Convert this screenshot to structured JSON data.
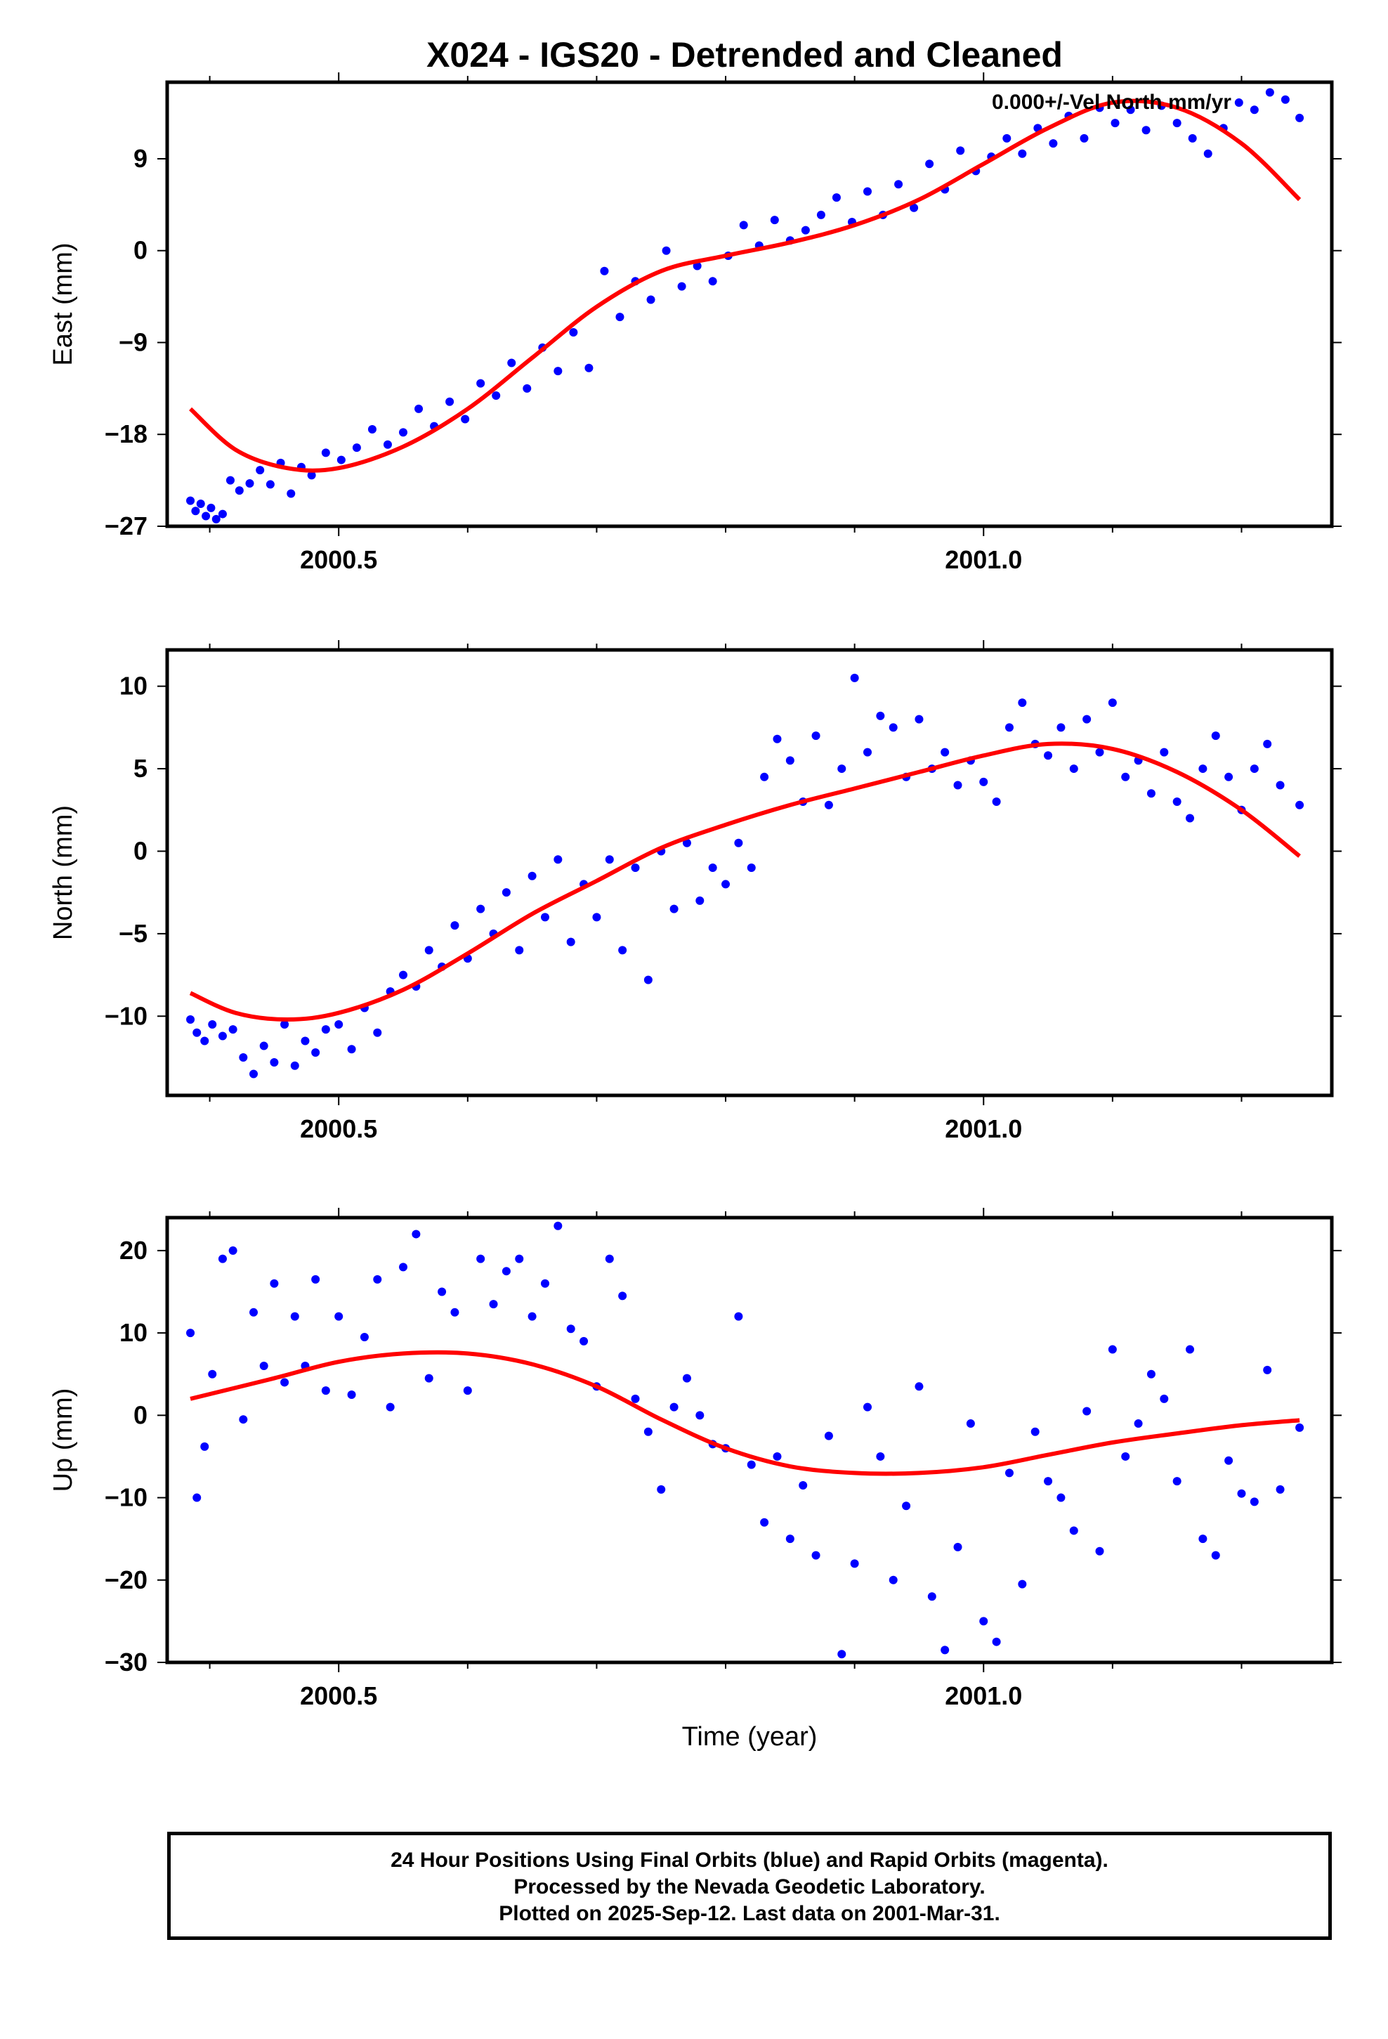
{
  "title": "X024 - IGS20 - Detrended and Cleaned",
  "caption": {
    "line1": "24 Hour Positions Using Final Orbits (blue) and Rapid Orbits (magenta).",
    "line2": "Processed by the Nevada Geodetic Laboratory.",
    "line3": "Plotted on 2025-Sep-12. Last data on 2001-Mar-31."
  },
  "colors": {
    "data_points": "#0000ff",
    "fit_curve": "#ff0000",
    "frame": "#000000"
  },
  "chart_data": [
    {
      "type": "scatter",
      "ylabel": "East (mm)",
      "xlabel": "",
      "xlim": [
        2000.367,
        2001.27
      ],
      "ylim": [
        -27,
        16.5
      ],
      "yticks": [
        -27,
        -18,
        -9,
        0,
        9
      ],
      "xticks": [
        2000.5,
        2001.0
      ],
      "annotation": "0.000+/-Vel North mm/yr",
      "fit": {
        "name": "",
        "x": [
          2000.385,
          2000.42,
          2000.46,
          2000.5,
          2000.55,
          2000.6,
          2000.65,
          2000.7,
          2000.75,
          2000.8,
          2000.85,
          2000.9,
          2000.95,
          2001.0,
          2001.05,
          2001.1,
          2001.15,
          2001.2,
          2001.245
        ],
        "y": [
          -15.5,
          -19.5,
          -21.3,
          -21.3,
          -19.2,
          -15.5,
          -10.5,
          -5.5,
          -2.0,
          -0.5,
          0.8,
          2.5,
          5.0,
          8.5,
          12.0,
          14.5,
          14.0,
          10.5,
          5.0
        ]
      },
      "series": [
        {
          "name": "",
          "x": [
            2000.385,
            2000.389,
            2000.393,
            2000.397,
            2000.401,
            2000.405,
            2000.41,
            2000.416,
            2000.423,
            2000.431,
            2000.439,
            2000.447,
            2000.455,
            2000.463,
            2000.471,
            2000.479,
            2000.49,
            2000.502,
            2000.514,
            2000.526,
            2000.538,
            2000.55,
            2000.562,
            2000.574,
            2000.586,
            2000.598,
            2000.61,
            2000.622,
            2000.634,
            2000.646,
            2000.658,
            2000.67,
            2000.682,
            2000.694,
            2000.706,
            2000.718,
            2000.73,
            2000.742,
            2000.754,
            2000.766,
            2000.778,
            2000.79,
            2000.802,
            2000.814,
            2000.826,
            2000.838,
            2000.85,
            2000.862,
            2000.874,
            2000.886,
            2000.898,
            2000.91,
            2000.922,
            2000.934,
            2000.946,
            2000.958,
            2000.97,
            2000.982,
            2000.994,
            2001.006,
            2001.018,
            2001.03,
            2001.042,
            2001.054,
            2001.066,
            2001.078,
            2001.09,
            2001.102,
            2001.114,
            2001.126,
            2001.138,
            2001.15,
            2001.162,
            2001.174,
            2001.186,
            2001.198,
            2001.21,
            2001.222,
            2001.234,
            2001.245
          ],
          "y": [
            -24.5,
            -25.5,
            -24.8,
            -26.0,
            -25.2,
            -26.3,
            -25.8,
            -22.5,
            -23.5,
            -22.8,
            -21.5,
            -22.9,
            -20.8,
            -23.8,
            -21.2,
            -22.0,
            -19.8,
            -20.5,
            -19.3,
            -17.5,
            -19.0,
            -17.8,
            -15.5,
            -17.2,
            -14.8,
            -16.5,
            -13.0,
            -14.2,
            -11.0,
            -13.5,
            -9.5,
            -11.8,
            -8.0,
            -11.5,
            -2.0,
            -6.5,
            -3.0,
            -4.8,
            0.0,
            -3.5,
            -1.5,
            -3.0,
            -0.5,
            2.5,
            0.5,
            3.0,
            1.0,
            2.0,
            3.5,
            5.2,
            2.8,
            5.8,
            3.5,
            6.5,
            4.2,
            8.5,
            6.0,
            9.8,
            7.8,
            9.2,
            11.0,
            9.5,
            12.0,
            10.5,
            13.2,
            11.0,
            14.0,
            12.5,
            13.8,
            11.8,
            14.2,
            12.5,
            11.0,
            9.5,
            12.0,
            14.5,
            13.8,
            15.5,
            14.8,
            13.0
          ]
        }
      ]
    },
    {
      "type": "scatter",
      "ylabel": "North (mm)",
      "xlabel": "",
      "xlim": [
        2000.367,
        2001.27
      ],
      "ylim": [
        -14.8,
        12.2
      ],
      "yticks": [
        -10,
        -5,
        0,
        5,
        10
      ],
      "xticks": [
        2000.5,
        2001.0
      ],
      "fit": {
        "name": "",
        "x": [
          2000.385,
          2000.42,
          2000.46,
          2000.5,
          2000.55,
          2000.6,
          2000.65,
          2000.7,
          2000.75,
          2000.8,
          2000.85,
          2000.9,
          2000.95,
          2001.0,
          2001.05,
          2001.1,
          2001.15,
          2001.2,
          2001.245
        ],
        "y": [
          -8.6,
          -9.8,
          -10.2,
          -9.8,
          -8.4,
          -6.2,
          -3.8,
          -1.8,
          0.2,
          1.6,
          2.8,
          3.8,
          4.8,
          5.8,
          6.5,
          6.2,
          4.8,
          2.5,
          -0.3
        ]
      },
      "series": [
        {
          "name": "",
          "x": [
            2000.385,
            2000.39,
            2000.396,
            2000.402,
            2000.41,
            2000.418,
            2000.426,
            2000.434,
            2000.442,
            2000.45,
            2000.458,
            2000.466,
            2000.474,
            2000.482,
            2000.49,
            2000.5,
            2000.51,
            2000.52,
            2000.53,
            2000.54,
            2000.55,
            2000.56,
            2000.57,
            2000.58,
            2000.59,
            2000.6,
            2000.61,
            2000.62,
            2000.63,
            2000.64,
            2000.65,
            2000.66,
            2000.67,
            2000.68,
            2000.69,
            2000.7,
            2000.71,
            2000.72,
            2000.73,
            2000.74,
            2000.75,
            2000.76,
            2000.77,
            2000.78,
            2000.79,
            2000.8,
            2000.81,
            2000.82,
            2000.83,
            2000.84,
            2000.85,
            2000.86,
            2000.87,
            2000.88,
            2000.89,
            2000.9,
            2000.91,
            2000.92,
            2000.93,
            2000.94,
            2000.95,
            2000.96,
            2000.97,
            2000.98,
            2000.99,
            2001.0,
            2001.01,
            2001.02,
            2001.03,
            2001.04,
            2001.05,
            2001.06,
            2001.07,
            2001.08,
            2001.09,
            2001.1,
            2001.11,
            2001.12,
            2001.13,
            2001.14,
            2001.15,
            2001.16,
            2001.17,
            2001.18,
            2001.19,
            2001.2,
            2001.21,
            2001.22,
            2001.23,
            2001.245
          ],
          "y": [
            -10.2,
            -11.0,
            -11.5,
            -10.5,
            -11.2,
            -10.8,
            -12.5,
            -13.5,
            -11.8,
            -12.8,
            -10.5,
            -13.0,
            -11.5,
            -12.2,
            -10.8,
            -10.5,
            -12.0,
            -9.5,
            -11.0,
            -8.5,
            -7.5,
            -8.2,
            -6.0,
            -7.0,
            -4.5,
            -6.5,
            -3.5,
            -5.0,
            -2.5,
            -6.0,
            -1.5,
            -4.0,
            -0.5,
            -5.5,
            -2.0,
            -4.0,
            -0.5,
            -6.0,
            -1.0,
            -7.8,
            0.0,
            -3.5,
            0.5,
            -3.0,
            -1.0,
            -2.0,
            0.5,
            -1.0,
            4.5,
            6.8,
            5.5,
            3.0,
            7.0,
            2.8,
            5.0,
            10.5,
            6.0,
            8.2,
            7.5,
            4.5,
            8.0,
            5.0,
            6.0,
            4.0,
            5.5,
            4.2,
            3.0,
            7.5,
            9.0,
            6.5,
            5.8,
            7.5,
            5.0,
            8.0,
            6.0,
            9.0,
            4.5,
            5.5,
            3.5,
            6.0,
            3.0,
            2.0,
            5.0,
            7.0,
            4.5,
            2.5,
            5.0,
            6.5,
            4.0,
            2.8
          ]
        }
      ]
    },
    {
      "type": "scatter",
      "ylabel": "Up (mm)",
      "xlabel": "Time (year)",
      "xlim": [
        2000.367,
        2001.27
      ],
      "ylim": [
        -30,
        24
      ],
      "yticks": [
        -30,
        -20,
        -10,
        0,
        10,
        20
      ],
      "xticks": [
        2000.5,
        2001.0
      ],
      "fit": {
        "name": "",
        "x": [
          2000.385,
          2000.45,
          2000.5,
          2000.55,
          2000.6,
          2000.65,
          2000.7,
          2000.75,
          2000.8,
          2000.85,
          2000.9,
          2000.95,
          2001.0,
          2001.05,
          2001.1,
          2001.15,
          2001.2,
          2001.245
        ],
        "y": [
          2.0,
          4.5,
          6.5,
          7.5,
          7.5,
          6.2,
          3.5,
          -0.5,
          -4.0,
          -6.2,
          -7.0,
          -7.0,
          -6.3,
          -4.8,
          -3.3,
          -2.2,
          -1.2,
          -0.6
        ]
      },
      "series": [
        {
          "name": "",
          "x": [
            2000.385,
            2000.39,
            2000.396,
            2000.402,
            2000.41,
            2000.418,
            2000.426,
            2000.434,
            2000.442,
            2000.45,
            2000.458,
            2000.466,
            2000.474,
            2000.482,
            2000.49,
            2000.5,
            2000.51,
            2000.52,
            2000.53,
            2000.54,
            2000.55,
            2000.56,
            2000.57,
            2000.58,
            2000.59,
            2000.6,
            2000.61,
            2000.62,
            2000.63,
            2000.64,
            2000.65,
            2000.66,
            2000.67,
            2000.68,
            2000.69,
            2000.7,
            2000.71,
            2000.72,
            2000.73,
            2000.74,
            2000.75,
            2000.76,
            2000.77,
            2000.78,
            2000.79,
            2000.8,
            2000.81,
            2000.82,
            2000.83,
            2000.84,
            2000.85,
            2000.86,
            2000.87,
            2000.88,
            2000.89,
            2000.9,
            2000.91,
            2000.92,
            2000.93,
            2000.94,
            2000.95,
            2000.96,
            2000.97,
            2000.98,
            2000.99,
            2001.0,
            2001.01,
            2001.02,
            2001.03,
            2001.04,
            2001.05,
            2001.06,
            2001.07,
            2001.08,
            2001.09,
            2001.1,
            2001.11,
            2001.12,
            2001.13,
            2001.14,
            2001.15,
            2001.16,
            2001.17,
            2001.18,
            2001.19,
            2001.2,
            2001.21,
            2001.22,
            2001.23,
            2001.245
          ],
          "y": [
            10.0,
            -10.0,
            -3.8,
            5.0,
            19.0,
            20.0,
            -0.5,
            12.5,
            6.0,
            16.0,
            4.0,
            12.0,
            6.0,
            16.5,
            3.0,
            12.0,
            2.5,
            9.5,
            16.5,
            1.0,
            18.0,
            22.0,
            4.5,
            15.0,
            12.5,
            3.0,
            19.0,
            13.5,
            17.5,
            19.0,
            12.0,
            16.0,
            23.0,
            10.5,
            9.0,
            3.5,
            19.0,
            14.5,
            2.0,
            -2.0,
            -9.0,
            1.0,
            4.5,
            0.0,
            -3.5,
            -4.0,
            12.0,
            -6.0,
            -13.0,
            -5.0,
            -15.0,
            -8.5,
            -17.0,
            -2.5,
            -29.0,
            -18.0,
            1.0,
            -5.0,
            -20.0,
            -11.0,
            3.5,
            -22.0,
            -28.5,
            -16.0,
            -1.0,
            -25.0,
            -27.5,
            -7.0,
            -20.5,
            -2.0,
            -8.0,
            -10.0,
            -14.0,
            0.5,
            -16.5,
            8.0,
            -5.0,
            -1.0,
            5.0,
            2.0,
            -8.0,
            8.0,
            -15.0,
            -17.0,
            -5.5,
            -9.5,
            -10.5,
            5.5,
            -9.0,
            -1.5
          ]
        }
      ]
    }
  ]
}
